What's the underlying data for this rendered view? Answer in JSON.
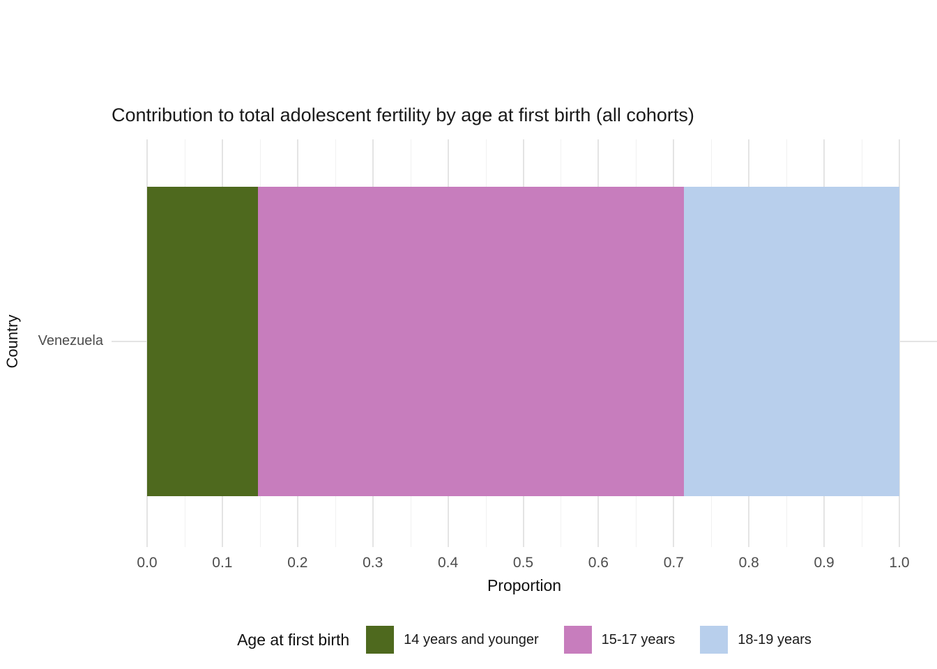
{
  "chart_data": {
    "type": "bar",
    "orientation": "horizontal",
    "stacked": true,
    "title": "Contribution to total adolescent fertility by age at first birth (all cohorts)",
    "xlabel": "Proportion",
    "ylabel": "Country",
    "categories": [
      "Venezuela"
    ],
    "series": [
      {
        "name": "14 years and younger",
        "values": [
          0.147
        ],
        "color": "#4e691e"
      },
      {
        "name": "15-17 years",
        "values": [
          0.567
        ],
        "color": "#c77dbd"
      },
      {
        "name": "18-19 years",
        "values": [
          0.286
        ],
        "color": "#b8cfec"
      }
    ],
    "xlim": [
      0,
      1
    ],
    "x_ticks": [
      0,
      0.1,
      0.2,
      0.3,
      0.4,
      0.5,
      0.6,
      0.7,
      0.8,
      0.9,
      1.0
    ],
    "x_tick_labels": [
      "0.0",
      "0.1",
      "0.2",
      "0.3",
      "0.4",
      "0.5",
      "0.6",
      "0.7",
      "0.8",
      "0.9",
      "1.0"
    ],
    "grid": {
      "major_color": "#e4e4e4",
      "minor_color": "#f1f1f1",
      "show": true
    },
    "legend": {
      "title": "Age at first birth",
      "position": "bottom"
    }
  }
}
